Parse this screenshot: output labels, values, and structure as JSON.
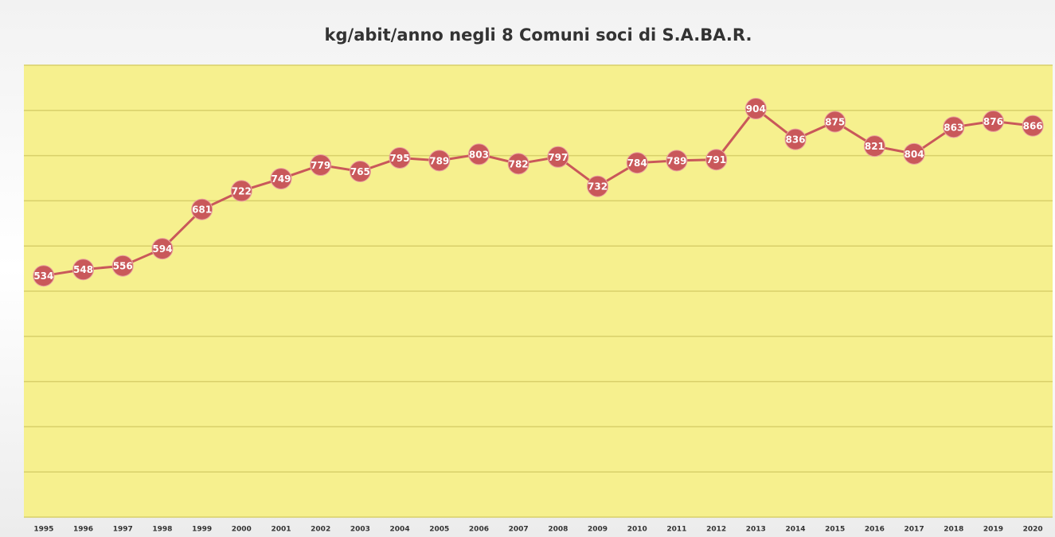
{
  "chart_data": {
    "type": "line",
    "title": "kg/abit/anno negli 8 Comuni soci di S.A.BA.R.",
    "categories": [
      "1995",
      "1996",
      "1997",
      "1998",
      "1999",
      "2000",
      "2001",
      "2002",
      "2003",
      "2004",
      "2005",
      "2006",
      "2007",
      "2008",
      "2009",
      "2010",
      "2011",
      "2012",
      "2013",
      "2014",
      "2015",
      "2016",
      "2017",
      "2018",
      "2019",
      "2020"
    ],
    "values": [
      534,
      548,
      556,
      594,
      681,
      722,
      749,
      779,
      765,
      795,
      789,
      803,
      782,
      797,
      732,
      784,
      789,
      791,
      904,
      836,
      875,
      821,
      804,
      863,
      876,
      866
    ],
    "color": "#c9585a",
    "ylim": [
      0,
      1000
    ],
    "yticks": [
      0,
      100,
      200,
      300,
      400,
      500,
      600,
      700,
      800,
      900,
      1000
    ],
    "grid": true
  }
}
